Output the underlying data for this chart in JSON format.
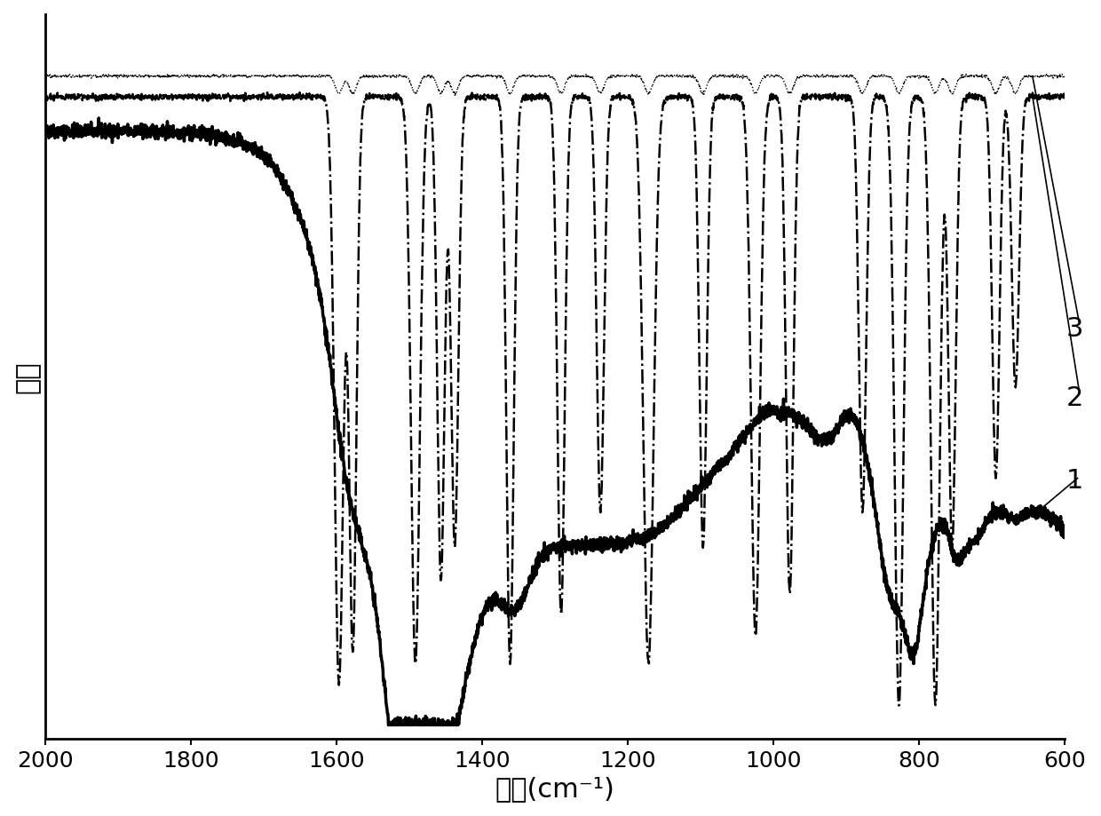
{
  "xlabel": "波数(cm⁻¹)",
  "ylabel": "强度",
  "xmin": 600,
  "xmax": 2000,
  "background_color": "#ffffff",
  "line1_color": "#000000",
  "line2_color": "#000000",
  "line3_color": "#000000",
  "label_1": "1",
  "label_2": "2",
  "label_3": "3",
  "xlabel_fontsize": 22,
  "ylabel_fontsize": 22,
  "tick_fontsize": 18,
  "label_fontsize": 22,
  "curve1_baseline": 0.88,
  "curve2_baseline": 0.93,
  "curve3_baseline": 0.96
}
